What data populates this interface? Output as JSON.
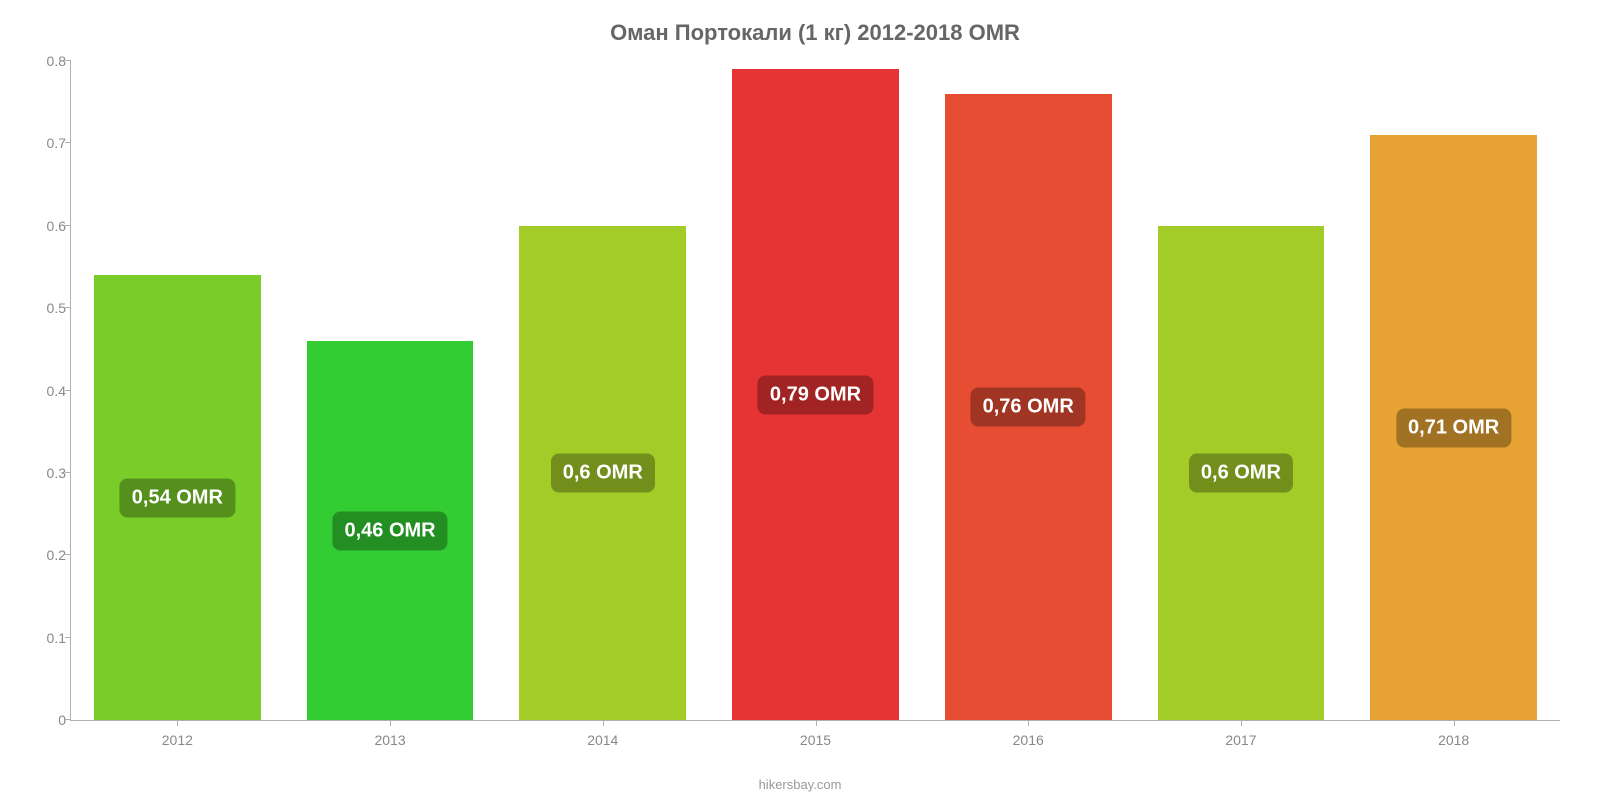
{
  "chart": {
    "type": "bar",
    "title": "Оман Портокали (1 кг) 2012-2018 OMR",
    "title_color": "#666666",
    "title_fontsize": 22,
    "background_color": "#ffffff",
    "axis_color": "#b0b0b0",
    "tick_label_color": "#888888",
    "tick_fontsize": 14,
    "attribution": "hikersbay.com",
    "attribution_color": "#999999",
    "ylim": [
      0,
      0.8
    ],
    "ytick_step": 0.1,
    "yticks": [
      "0",
      "0.1",
      "0.2",
      "0.3",
      "0.4",
      "0.5",
      "0.6",
      "0.7",
      "0.8"
    ],
    "categories": [
      "2012",
      "2013",
      "2014",
      "2015",
      "2016",
      "2017",
      "2018"
    ],
    "bar_width_pct": 11.2,
    "bars": [
      {
        "year": "2012",
        "value": 0.54,
        "label": "0,54 OMR",
        "color": "#7acc29",
        "label_bg": "#558f1c"
      },
      {
        "year": "2013",
        "value": 0.46,
        "label": "0,46 OMR",
        "color": "#33cc33",
        "label_bg": "#238f23"
      },
      {
        "year": "2014",
        "value": 0.6,
        "label": "0,6 OMR",
        "color": "#a3cc29",
        "label_bg": "#728f1c"
      },
      {
        "year": "2015",
        "value": 0.79,
        "label": "0,79 OMR",
        "color": "#e63333",
        "label_bg": "#a12323"
      },
      {
        "year": "2016",
        "value": 0.76,
        "label": "0,76 OMR",
        "color": "#e64d33",
        "label_bg": "#a13523"
      },
      {
        "year": "2017",
        "value": 0.6,
        "label": "0,6 OMR",
        "color": "#a3cc29",
        "label_bg": "#728f1c"
      },
      {
        "year": "2018",
        "value": 0.71,
        "label": "0,71 OMR",
        "color": "#e6a333",
        "label_bg": "#a17223"
      }
    ]
  }
}
